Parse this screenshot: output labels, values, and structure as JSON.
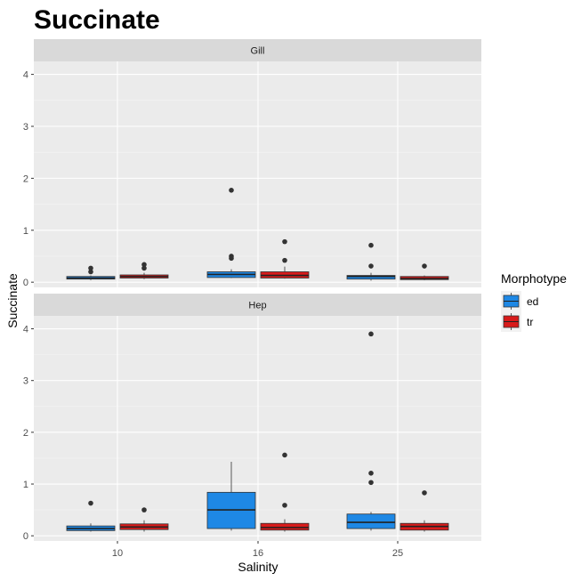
{
  "chart_data": {
    "type": "boxplot",
    "title": "Succinate",
    "xlabel": "Salinity",
    "ylabel": "Succinate",
    "categories": [
      "10",
      "16",
      "25"
    ],
    "ylim": [
      -0.1,
      4.25
    ],
    "yticks": [
      0,
      1,
      2,
      3,
      4
    ],
    "legend": {
      "title": "Morphotype",
      "position": "right",
      "entries": [
        {
          "name": "ed",
          "color": "#1E88E5"
        },
        {
          "name": "tr",
          "color": "#D81B1B"
        }
      ]
    },
    "panels": [
      {
        "name": "Gill",
        "boxes": [
          {
            "category": "10",
            "series": "ed",
            "min": 0.04,
            "q1": 0.06,
            "median": 0.08,
            "q3": 0.11,
            "max": 0.13,
            "outliers": [
              0.2,
              0.27
            ]
          },
          {
            "category": "10",
            "series": "tr",
            "min": 0.06,
            "q1": 0.08,
            "median": 0.11,
            "q3": 0.14,
            "max": 0.18,
            "outliers": [
              0.27,
              0.34
            ]
          },
          {
            "category": "16",
            "series": "ed",
            "min": 0.08,
            "q1": 0.09,
            "median": 0.15,
            "q3": 0.2,
            "max": 0.25,
            "outliers": [
              0.46,
              0.5,
              1.77
            ]
          },
          {
            "category": "16",
            "series": "tr",
            "min": 0.07,
            "q1": 0.08,
            "median": 0.13,
            "q3": 0.2,
            "max": 0.3,
            "outliers": [
              0.42,
              0.78
            ]
          },
          {
            "category": "25",
            "series": "ed",
            "min": 0.03,
            "q1": 0.06,
            "median": 0.11,
            "q3": 0.13,
            "max": 0.18,
            "outliers": [
              0.31,
              0.71
            ]
          },
          {
            "category": "25",
            "series": "tr",
            "min": 0.04,
            "q1": 0.05,
            "median": 0.07,
            "q3": 0.11,
            "max": 0.13,
            "outliers": [
              0.31
            ]
          }
        ]
      },
      {
        "name": "Hep",
        "boxes": [
          {
            "category": "10",
            "series": "ed",
            "min": 0.08,
            "q1": 0.1,
            "median": 0.14,
            "q3": 0.19,
            "max": 0.24,
            "outliers": [
              0.63
            ]
          },
          {
            "category": "10",
            "series": "tr",
            "min": 0.08,
            "q1": 0.12,
            "median": 0.17,
            "q3": 0.23,
            "max": 0.3,
            "outliers": [
              0.5
            ]
          },
          {
            "category": "16",
            "series": "ed",
            "min": 0.1,
            "q1": 0.14,
            "median": 0.5,
            "q3": 0.84,
            "max": 1.43,
            "outliers": []
          },
          {
            "category": "16",
            "series": "tr",
            "min": 0.08,
            "q1": 0.11,
            "median": 0.16,
            "q3": 0.24,
            "max": 0.32,
            "outliers": [
              0.59,
              1.56
            ]
          },
          {
            "category": "25",
            "series": "ed",
            "min": 0.1,
            "q1": 0.14,
            "median": 0.26,
            "q3": 0.42,
            "max": 0.46,
            "outliers": [
              1.03,
              1.21,
              3.9
            ]
          },
          {
            "category": "25",
            "series": "tr",
            "min": 0.08,
            "q1": 0.11,
            "median": 0.18,
            "q3": 0.24,
            "max": 0.3,
            "outliers": [
              0.83
            ]
          }
        ]
      }
    ]
  }
}
